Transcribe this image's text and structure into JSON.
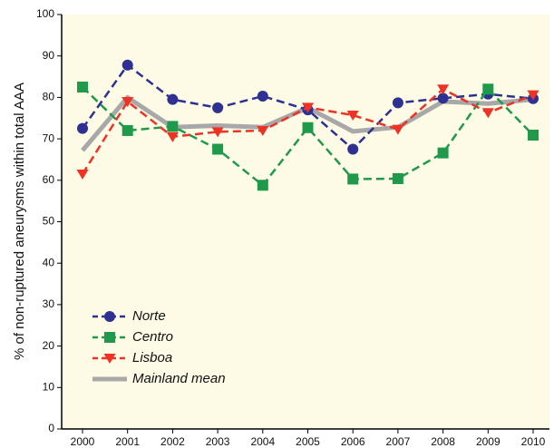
{
  "chart_data": {
    "type": "line",
    "y_label": "% of non-ruptured aneurysms within total AAA",
    "categories": [
      "2000",
      "2001",
      "2002",
      "2003",
      "2004",
      "2005",
      "2006",
      "2007",
      "2008",
      "2009",
      "2010"
    ],
    "series": [
      {
        "name": "Norte",
        "color": "#2e3192",
        "marker": "circle",
        "dashed": true,
        "values": [
          72.5,
          87.8,
          79.5,
          77.5,
          80.3,
          77.0,
          67.5,
          78.7,
          79.8,
          80.8,
          79.7
        ]
      },
      {
        "name": "Centro",
        "color": "#1e9a4a",
        "marker": "square",
        "dashed": true,
        "values": [
          82.5,
          72.0,
          73.0,
          67.5,
          58.8,
          72.7,
          60.3,
          60.4,
          66.6,
          82.0,
          70.9
        ]
      },
      {
        "name": "Lisboa",
        "color": "#ee3224",
        "marker": "triangle",
        "dashed": true,
        "values": [
          61.5,
          79.0,
          70.5,
          71.7,
          72.0,
          77.6,
          75.7,
          72.3,
          82.0,
          76.3,
          80.6
        ]
      },
      {
        "name": "Mainland mean",
        "color": "#a8a8a8",
        "marker": "none",
        "dashed": false,
        "values": [
          67.2,
          80.0,
          72.8,
          73.2,
          72.8,
          77.5,
          71.8,
          72.8,
          79.0,
          78.5,
          79.5
        ]
      }
    ],
    "ylim": [
      0,
      100
    ],
    "yticks": [
      0,
      10,
      20,
      30,
      40,
      50,
      60,
      70,
      80,
      90,
      100
    ],
    "background": "#fdfbe6"
  }
}
